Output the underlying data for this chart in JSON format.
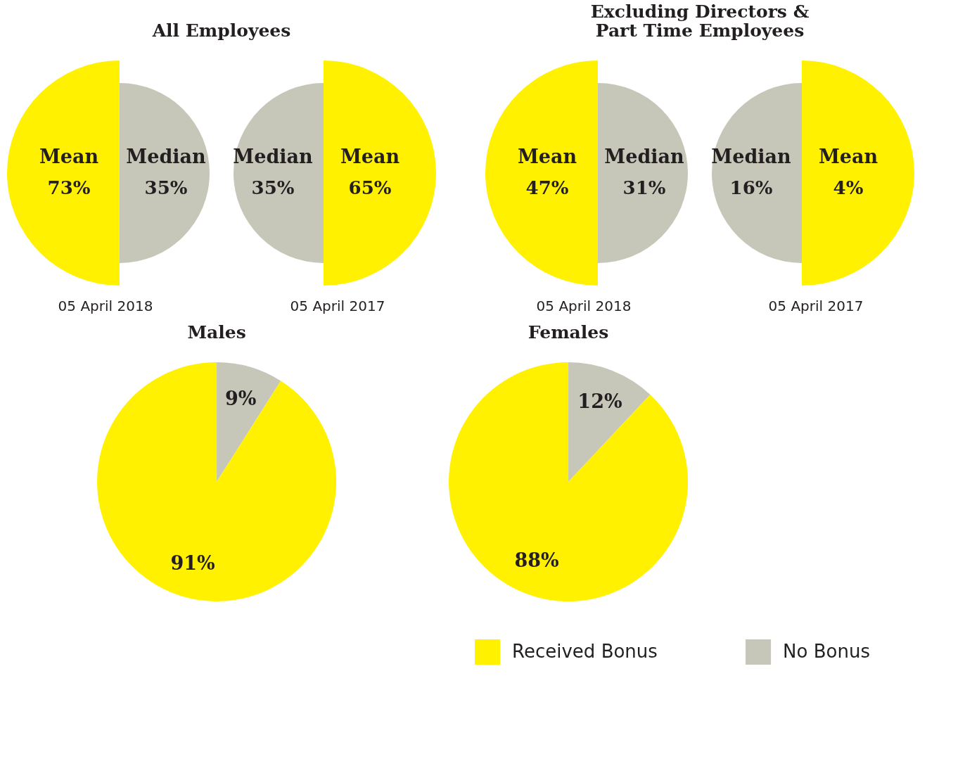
{
  "chart_data": [
    {
      "type": "other",
      "title": "All Employees",
      "categories": [
        "Mean",
        "Median",
        "Median",
        "Mean"
      ],
      "values": [
        73,
        35,
        35,
        65
      ],
      "value_labels": [
        "73%",
        "35%",
        "35%",
        "65%"
      ],
      "colors": [
        "#fff100",
        "#c6c7b8",
        "#c6c7b8",
        "#fff100"
      ],
      "annotations": [
        "05 April 2018",
        "05 April 2017"
      ]
    },
    {
      "type": "other",
      "title": "Excluding Directors & Part Time Employees",
      "categories": [
        "Mean",
        "Median",
        "Median",
        "Mean"
      ],
      "values": [
        47,
        31,
        16,
        4
      ],
      "value_labels": [
        "47%",
        "31%",
        "16%",
        "4%"
      ],
      "colors": [
        "#fff100",
        "#c6c7b8",
        "#c6c7b8",
        "#fff100"
      ],
      "annotations": [
        "05 April 2018",
        "05 April 2017"
      ]
    },
    {
      "type": "pie",
      "title": "Males",
      "categories": [
        "No Bonus",
        "Received Bonus"
      ],
      "values": [
        9,
        91
      ],
      "value_labels": [
        "9%",
        "91%"
      ],
      "colors": [
        "#c6c7b8",
        "#fff100"
      ],
      "legend": "bottom right"
    },
    {
      "type": "pie",
      "title": "Females",
      "categories": [
        null,
        null
      ],
      "values": [
        12,
        88
      ],
      "value_labels": [
        "12%",
        "88%"
      ],
      "colors": [
        "#c6c7b8",
        "#fff100"
      ]
    }
  ]
}
